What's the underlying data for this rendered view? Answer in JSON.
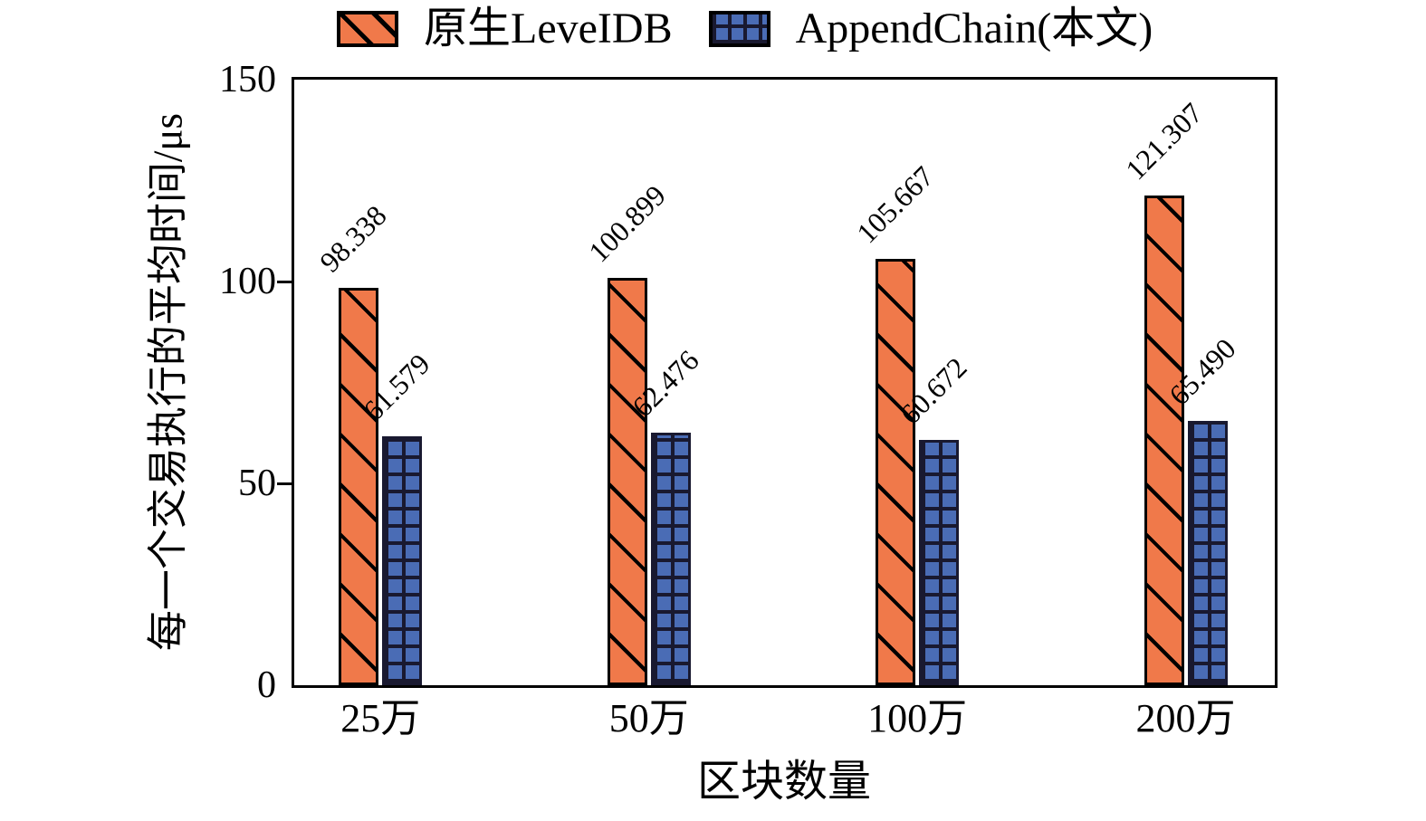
{
  "figure": {
    "background_color": "#ffffff",
    "frame_color": "#000000"
  },
  "chart_data": {
    "type": "bar",
    "title": "",
    "categories": [
      "25万",
      "50万",
      "100万",
      "200万"
    ],
    "series": [
      {
        "name": "原生LeveIDB",
        "values": [
          98.338,
          100.899,
          105.667,
          121.307
        ],
        "value_labels": [
          "98.338",
          "100.899",
          "105.667",
          "121.307"
        ],
        "fill_color": "#F0794A",
        "hatch": "diagonal",
        "hatch_color": "#000000",
        "edge_color": "#000000"
      },
      {
        "name": "AppendChain(本文)",
        "values": [
          61.579,
          62.476,
          60.672,
          65.49
        ],
        "value_labels": [
          "61.579",
          "62.476",
          "60.672",
          "65.490"
        ],
        "fill_color": "#4A6CB5",
        "hatch": "grid",
        "hatch_color": "#191930",
        "edge_color": "#191930"
      }
    ],
    "xlabel": "区块数量",
    "ylabel": "每一个交易执行的平均时间/μs",
    "ylim": [
      0,
      150
    ],
    "yticks": [
      0,
      50,
      100,
      150
    ],
    "legend_position": "top",
    "grid": false,
    "value_label_rotation_deg": 45
  }
}
